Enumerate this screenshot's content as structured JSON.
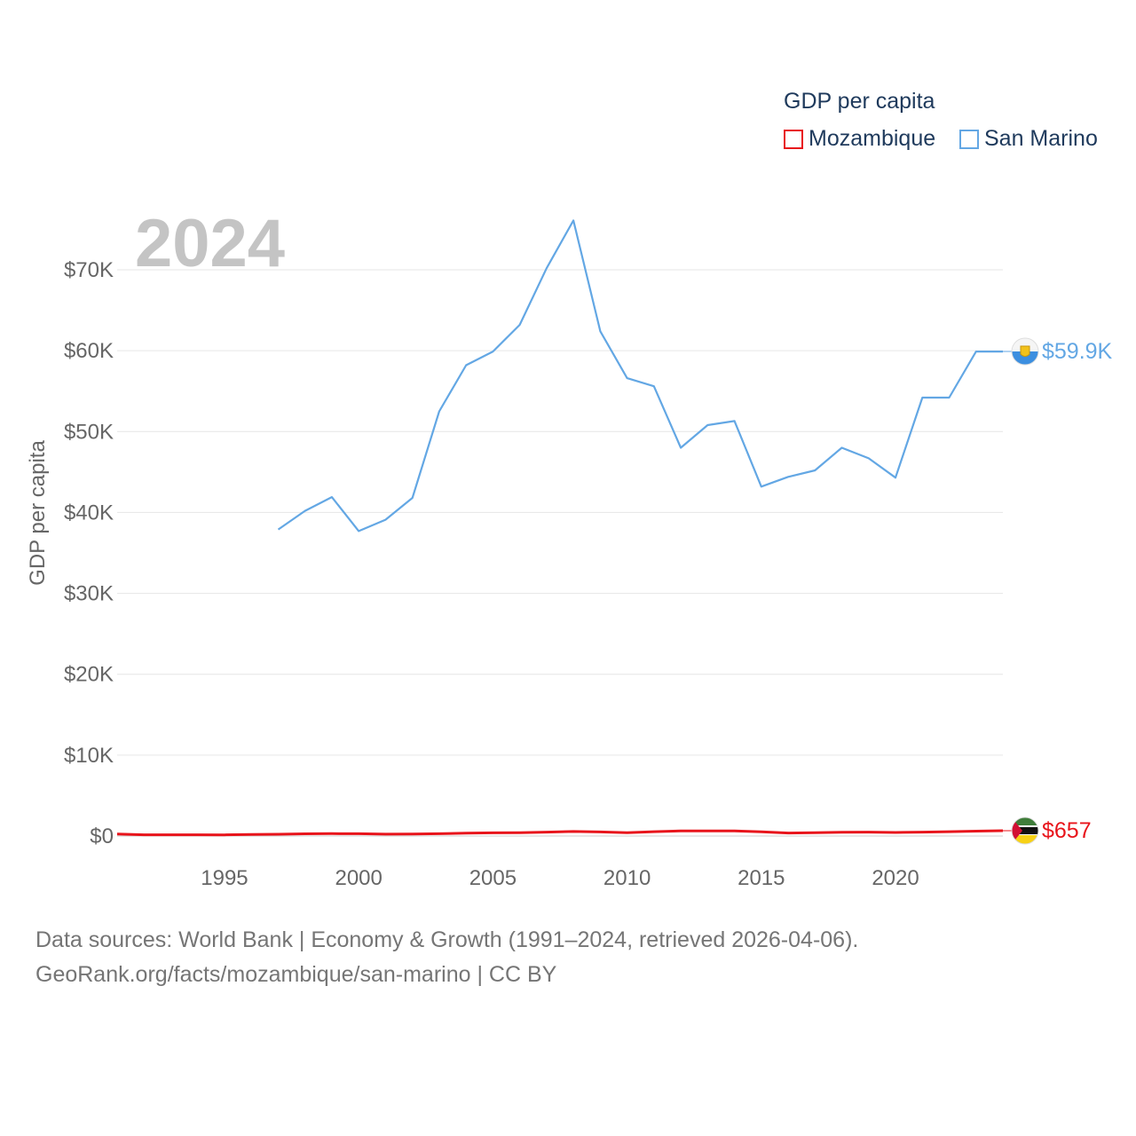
{
  "legend": {
    "title": "GDP per capita",
    "items": [
      {
        "name": "Mozambique",
        "color": "#e8141b"
      },
      {
        "name": "San Marino",
        "color": "#63a7e4"
      }
    ]
  },
  "source": {
    "line1": "Data sources: World Bank | Economy & Growth (1991–2024, retrieved 2026-04-06).",
    "line2": "GeoRank.org/facts/mozambique/san-marino | CC BY"
  },
  "chart_data": {
    "type": "line",
    "title": "GDP per capita",
    "year_label": "2024",
    "xlabel": "",
    "ylabel": "GDP per capita",
    "xlim": [
      1991,
      2024
    ],
    "ylim": [
      0,
      70000
    ],
    "x_ticks": [
      1995,
      2000,
      2005,
      2010,
      2015,
      2020
    ],
    "x_tick_labels": [
      "1995",
      "2000",
      "2005",
      "2010",
      "2015",
      "2020"
    ],
    "y_ticks": [
      0,
      10000,
      20000,
      30000,
      40000,
      50000,
      60000,
      70000
    ],
    "y_tick_labels": [
      "$0",
      "$10K",
      "$20K",
      "$30K",
      "$40K",
      "$50K",
      "$60K",
      "$70K"
    ],
    "grid": true,
    "series": [
      {
        "name": "Mozambique",
        "color": "#e8141b",
        "end_label": "$657",
        "flag_icon": "mozambique-flag-icon",
        "x": [
          1991,
          1992,
          1993,
          1994,
          1995,
          1996,
          1997,
          1998,
          1999,
          2000,
          2001,
          2002,
          2003,
          2004,
          2005,
          2006,
          2007,
          2008,
          2009,
          2010,
          2011,
          2012,
          2013,
          2014,
          2015,
          2016,
          2017,
          2018,
          2019,
          2020,
          2021,
          2022,
          2023,
          2024
        ],
        "values": [
          250,
          150,
          150,
          150,
          140,
          190,
          220,
          270,
          300,
          280,
          230,
          250,
          280,
          350,
          390,
          420,
          480,
          560,
          500,
          420,
          540,
          620,
          620,
          620,
          520,
          370,
          420,
          470,
          480,
          440,
          480,
          540,
          600,
          657
        ]
      },
      {
        "name": "San Marino",
        "color": "#63a7e4",
        "end_label": "$59.9K",
        "flag_icon": "san-marino-flag-icon",
        "x": [
          1997,
          1998,
          1999,
          2000,
          2001,
          2002,
          2003,
          2004,
          2005,
          2006,
          2007,
          2008,
          2009,
          2010,
          2011,
          2012,
          2013,
          2014,
          2015,
          2016,
          2017,
          2018,
          2019,
          2020,
          2021,
          2022,
          2023,
          2024
        ],
        "values": [
          37900,
          40200,
          41900,
          37700,
          39100,
          41800,
          52500,
          58200,
          59900,
          63200,
          70200,
          76100,
          62400,
          56600,
          55600,
          48000,
          50800,
          51300,
          43200,
          44400,
          45200,
          48000,
          46700,
          44300,
          54200,
          54200,
          59900,
          59900
        ]
      }
    ]
  }
}
